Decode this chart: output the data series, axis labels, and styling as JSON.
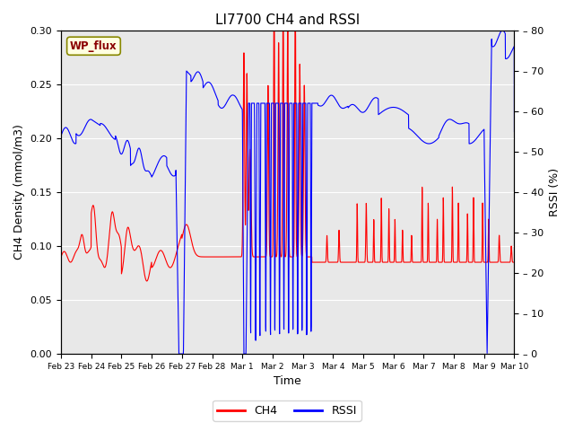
{
  "title": "LI7700 CH4 and RSSI",
  "xlabel": "Time",
  "ylabel_left": "CH4 Density (mmol/m3)",
  "ylabel_right": "RSSI (%)",
  "ylim_left": [
    0.0,
    0.3
  ],
  "ylim_right": [
    0,
    80
  ],
  "yticks_left": [
    0.0,
    0.05,
    0.1,
    0.15,
    0.2,
    0.25,
    0.3
  ],
  "yticks_right": [
    0,
    10,
    20,
    30,
    40,
    50,
    60,
    70,
    80
  ],
  "xtick_labels": [
    "Feb 23",
    "Feb 24",
    "Feb 25",
    "Feb 26",
    "Feb 27",
    "Feb 28",
    "Mar 1",
    "Mar 2",
    "Mar 3",
    "Mar 4",
    "Mar 5",
    "Mar 6",
    "Mar 7",
    "Mar 8",
    "Mar 9",
    "Mar 10"
  ],
  "watermark": "WP_flux",
  "background_color": "#e8e8e8",
  "ch4_color": "red",
  "rssi_color": "blue",
  "grid_color": "white",
  "title_fontsize": 11,
  "axis_label_fontsize": 9,
  "tick_fontsize": 8
}
